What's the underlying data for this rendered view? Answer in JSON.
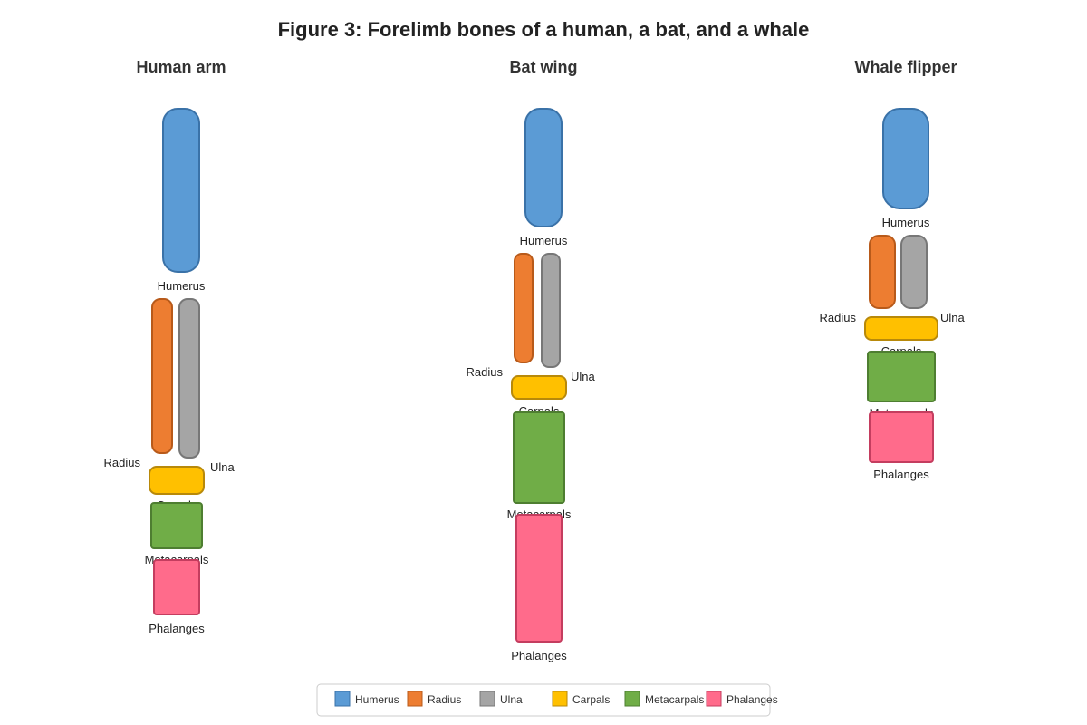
{
  "title": "Figure 3: Forelimb bones of a human, a bat, and a whale",
  "colors": {
    "humerus": {
      "fill": "#5B9BD5",
      "stroke": "#3A72A8"
    },
    "radius": {
      "fill": "#ED7D31",
      "stroke": "#B85A1A"
    },
    "ulna": {
      "fill": "#A5A5A5",
      "stroke": "#777777"
    },
    "carpals": {
      "fill": "#FFC000",
      "stroke": "#B8890A"
    },
    "metacarpals": {
      "fill": "#70AD47",
      "stroke": "#4E7E31"
    },
    "phalanges": {
      "fill": "#FF6B8B",
      "stroke": "#C43D5F"
    }
  },
  "panels": [
    {
      "name": "Human arm",
      "labels": {
        "humerus": "Humerus",
        "radius": "Radius",
        "ulna": "Ulna",
        "carpals": "Carpals",
        "metacarpals": "Metacarpals",
        "phalanges": "Phalanges"
      }
    },
    {
      "name": "Bat wing",
      "labels": {
        "humerus": "Humerus",
        "radius": "Radius",
        "ulna": "Ulna",
        "carpals": "Carpals",
        "metacarpals": "Metacarpals",
        "phalanges": "Phalanges"
      }
    },
    {
      "name": "Whale flipper",
      "labels": {
        "humerus": "Humerus",
        "radius": "Radius",
        "ulna": "Ulna",
        "carpals": "Carpals",
        "metacarpals": "Metacarpals",
        "phalanges": "Phalanges"
      }
    }
  ],
  "legend": [
    {
      "key": "humerus",
      "label": "Humerus"
    },
    {
      "key": "radius",
      "label": "Radius"
    },
    {
      "key": "ulna",
      "label": "Ulna"
    },
    {
      "key": "carpals",
      "label": "Carpals"
    },
    {
      "key": "metacarpals",
      "label": "Metacarpals"
    },
    {
      "key": "phalanges",
      "label": "Phalanges"
    }
  ]
}
